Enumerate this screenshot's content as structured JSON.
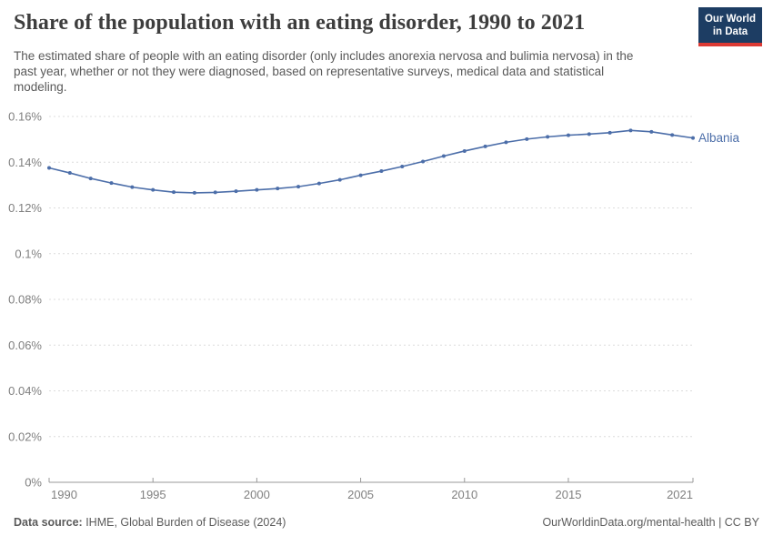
{
  "header": {
    "title": "Share of the population with an eating disorder, 1990 to 2021",
    "subtitle": "The estimated share of people with an eating disorder (only includes anorexia nervosa and bulimia nervosa) in the past year, whether or not they were diagnosed, based on representative surveys, medical data and statistical modeling.",
    "logo": {
      "line1": "Our World",
      "line2": "in Data"
    }
  },
  "chart_data": {
    "type": "line",
    "title": "Share of the population with an eating disorder, 1990 to 2021",
    "x": [
      1990,
      1991,
      1992,
      1993,
      1994,
      1995,
      1996,
      1997,
      1998,
      1999,
      2000,
      2001,
      2002,
      2003,
      2004,
      2005,
      2006,
      2007,
      2008,
      2009,
      2010,
      2011,
      2012,
      2013,
      2014,
      2015,
      2016,
      2017,
      2018,
      2019,
      2020,
      2021
    ],
    "series": [
      {
        "name": "Albania",
        "color": "#4C6EA9",
        "values": [
          0.1375,
          0.1353,
          0.1329,
          0.1309,
          0.1291,
          0.1279,
          0.1269,
          0.1266,
          0.1268,
          0.1273,
          0.1279,
          0.1285,
          0.1293,
          0.1307,
          0.1323,
          0.1343,
          0.1361,
          0.1381,
          0.1403,
          0.1427,
          0.1449,
          0.1469,
          0.1487,
          0.1501,
          0.1511,
          0.1518,
          0.1523,
          0.1529,
          0.1539,
          0.1533,
          0.1519,
          0.1506
        ]
      }
    ],
    "xlim": [
      1990,
      2021
    ],
    "ylim": [
      0,
      0.16
    ],
    "x_ticks": [
      1990,
      1995,
      2000,
      2005,
      2010,
      2015,
      2021
    ],
    "y_ticks": [
      {
        "v": 0,
        "label": "0%"
      },
      {
        "v": 0.02,
        "label": "0.02%"
      },
      {
        "v": 0.04,
        "label": "0.04%"
      },
      {
        "v": 0.06,
        "label": "0.06%"
      },
      {
        "v": 0.08,
        "label": "0.08%"
      },
      {
        "v": 0.1,
        "label": "0.1%"
      },
      {
        "v": 0.12,
        "label": "0.12%"
      },
      {
        "v": 0.14,
        "label": "0.14%"
      },
      {
        "v": 0.16,
        "label": "0.16%"
      }
    ],
    "grid": "horizontal-dashed",
    "legend_position": "end-of-line-label"
  },
  "colors": {
    "line": "#4C6EA9",
    "grid": "#dcdcdc",
    "axis": "#999999",
    "tick_label": "#808080",
    "logo_bg": "#1d3d63",
    "logo_red": "#dc3a34"
  },
  "footer": {
    "datasource_label": "Data source:",
    "datasource_value": " IHME, Global Burden of Disease (2024)",
    "credit": "OurWorldinData.org/mental-health | CC BY"
  }
}
